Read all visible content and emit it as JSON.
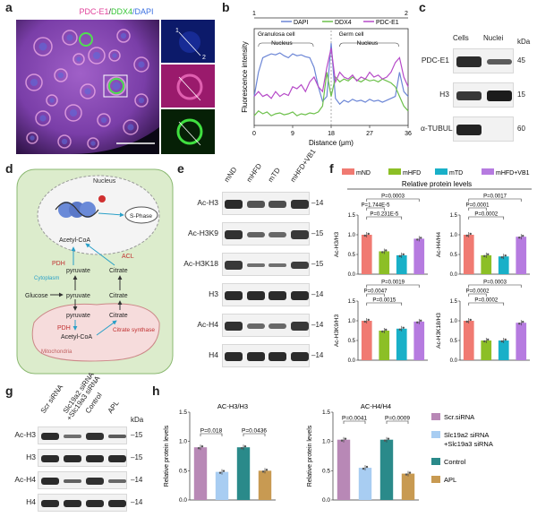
{
  "panel_letters": [
    "a",
    "b",
    "c",
    "d",
    "e",
    "f",
    "g",
    "h"
  ],
  "panel_a": {
    "title_parts": [
      {
        "text": "PDC-E1",
        "color": "#e0409a"
      },
      {
        "text": "/",
        "color": "#333333"
      },
      {
        "text": "DDX4",
        "color": "#35c435"
      },
      {
        "text": "/DAPI",
        "color": "#3a6fe0"
      }
    ],
    "inset_marks": [
      "1",
      "2"
    ]
  },
  "panel_b": {
    "chart_data": {
      "type": "line",
      "xlabel": "Distance (μm)",
      "ylabel": "Fluorescence intensity",
      "xticks": [
        "0",
        "9",
        "18",
        "27",
        "36"
      ],
      "xlim": [
        0,
        36
      ],
      "legend": [
        "DAPI",
        "DDX4",
        "PDC-E1"
      ],
      "colors": {
        "DAPI": "#6c86d6",
        "DDX4": "#6cc04a",
        "PDC-E1": "#b64ac8"
      },
      "top_marks": [
        "1",
        "2"
      ],
      "region_labels": [
        "Granulosa cell",
        "Germ cell"
      ],
      "nucleus_labels": [
        "Nucleus",
        "Nucleus"
      ],
      "x": [
        0,
        1,
        2,
        3,
        4,
        5,
        6,
        7,
        8,
        9,
        10,
        11,
        12,
        13,
        14,
        15,
        16,
        17,
        18,
        19,
        20,
        21,
        22,
        23,
        24,
        25,
        26,
        27,
        28,
        29,
        30,
        31,
        32,
        33,
        34,
        35,
        36
      ],
      "series": [
        {
          "name": "DAPI",
          "values": [
            0.3,
            0.55,
            0.7,
            0.72,
            0.74,
            0.73,
            0.75,
            0.72,
            0.7,
            0.74,
            0.72,
            0.73,
            0.71,
            0.7,
            0.6,
            0.4,
            0.25,
            0.3,
            0.85,
            0.28,
            0.22,
            0.26,
            0.24,
            0.27,
            0.25,
            0.26,
            0.24,
            0.27,
            0.25,
            0.26,
            0.24,
            0.26,
            0.28,
            0.3,
            0.55,
            0.35,
            0.3
          ]
        },
        {
          "name": "DDX4",
          "values": [
            0.1,
            0.15,
            0.12,
            0.14,
            0.1,
            0.12,
            0.13,
            0.11,
            0.12,
            0.14,
            0.1,
            0.12,
            0.11,
            0.13,
            0.12,
            0.14,
            0.2,
            0.55,
            0.3,
            0.5,
            0.45,
            0.48,
            0.46,
            0.5,
            0.47,
            0.45,
            0.48,
            0.46,
            0.47,
            0.45,
            0.48,
            0.46,
            0.44,
            0.4,
            0.3,
            0.2,
            0.15
          ]
        },
        {
          "name": "PDC-E1",
          "values": [
            0.3,
            0.35,
            0.3,
            0.32,
            0.28,
            0.35,
            0.3,
            0.33,
            0.31,
            0.4,
            0.38,
            0.42,
            0.35,
            0.45,
            0.5,
            0.4,
            0.35,
            0.6,
            0.8,
            0.45,
            0.55,
            0.5,
            0.48,
            0.52,
            0.46,
            0.5,
            0.48,
            0.55,
            0.5,
            0.52,
            0.48,
            0.5,
            0.55,
            0.65,
            0.7,
            0.5,
            0.4
          ]
        }
      ]
    }
  },
  "panel_c": {
    "columns": [
      "Cells",
      "Nuclei"
    ],
    "unit": "kDa",
    "rows": [
      {
        "label": "PDC-E1",
        "kda": "45",
        "bands": [
          0.9,
          0.55
        ]
      },
      {
        "label": "H3",
        "kda": "15",
        "bands": [
          0.8,
          1.0
        ]
      },
      {
        "label": "α-TUBULIN",
        "kda": "60",
        "bands": [
          0.95,
          0.0
        ]
      }
    ]
  },
  "panel_d": {
    "nucleus": "Nucleus",
    "cytoplasm": "Cytoplasm",
    "mitochondria": "Mitochondria",
    "s_phase": "S-Phase",
    "acetyl_coa": "Acetyl-CoA",
    "pdh": "PDH",
    "acl": "ACL",
    "pyruvate": "pyruvate",
    "citrate": "Citrate",
    "glucose": "Glucose",
    "citrate_synthase": "Citrate synthase"
  },
  "panel_e": {
    "columns": [
      "mND",
      "mHFD",
      "mTD",
      "mHFD+VB1"
    ],
    "rows": [
      {
        "label": "Ac-H3",
        "kda": "14",
        "bands": [
          0.9,
          0.6,
          0.65,
          0.85
        ]
      },
      {
        "label": "Ac-H3K9",
        "kda": "15",
        "bands": [
          0.85,
          0.5,
          0.45,
          0.8
        ]
      },
      {
        "label": "Ac-H3K18",
        "kda": "15",
        "bands": [
          0.8,
          0.4,
          0.4,
          0.75
        ]
      },
      {
        "label": "H3",
        "kda": "14",
        "bands": [
          0.9,
          0.9,
          0.9,
          0.9
        ]
      },
      {
        "label": "Ac-H4",
        "kda": "14",
        "bands": [
          0.85,
          0.45,
          0.45,
          0.8
        ]
      },
      {
        "label": "H4",
        "kda": "14",
        "bands": [
          0.9,
          0.9,
          0.9,
          0.9
        ]
      }
    ]
  },
  "panel_f": {
    "legend": [
      {
        "name": "mND",
        "color": "#f07a72"
      },
      {
        "name": "mHFD",
        "color": "#8cbf26"
      },
      {
        "name": "mTD",
        "color": "#19b0c8"
      },
      {
        "name": "mHFD+VB1",
        "color": "#b67be0"
      }
    ],
    "heading": "Relative protein levels",
    "chart_data": [
      {
        "type": "bar",
        "ylabel": "Ac-H3/H3",
        "categories": [
          "mND",
          "mHFD",
          "mTD",
          "mHFD+VB1"
        ],
        "values": [
          1.0,
          0.58,
          0.48,
          0.9
        ],
        "ylim": [
          0,
          1.5
        ],
        "yticks": [
          "0.0",
          "0.5",
          "1.0",
          "1.5"
        ],
        "annotations": [
          "P=0.0003",
          "P=1.744E-5",
          "P=0.231E-5"
        ]
      },
      {
        "type": "bar",
        "ylabel": "Ac-H4/H4",
        "categories": [
          "mND",
          "mHFD",
          "mTD",
          "mHFD+VB1"
        ],
        "values": [
          1.0,
          0.48,
          0.45,
          0.95
        ],
        "ylim": [
          0,
          1.5
        ],
        "yticks": [
          "0.0",
          "0.5",
          "1.0",
          "1.5"
        ],
        "annotations": [
          "P=0.0017",
          "P=0.0001",
          "P=0.0002"
        ]
      },
      {
        "type": "bar",
        "ylabel": "Ac-H3K9/H3",
        "categories": [
          "mND",
          "mHFD",
          "mTD",
          "mHFD+VB1"
        ],
        "values": [
          1.0,
          0.75,
          0.8,
          0.98
        ],
        "ylim": [
          0,
          1.5
        ],
        "yticks": [
          "0.0",
          "0.5",
          "1.0",
          "1.5"
        ],
        "annotations": [
          "P=0.0019",
          "P=0.0047",
          "P=0.0015"
        ]
      },
      {
        "type": "bar",
        "ylabel": "Ac-H3K18/H3",
        "categories": [
          "mND",
          "mHFD",
          "mTD",
          "mHFD+VB1"
        ],
        "values": [
          1.0,
          0.5,
          0.5,
          0.95
        ],
        "ylim": [
          0,
          1.5
        ],
        "yticks": [
          "0.0",
          "0.5",
          "1.0",
          "1.5"
        ],
        "annotations": [
          "P=0.0003",
          "P=0.0002",
          "P=0.0002"
        ]
      }
    ]
  },
  "panel_g": {
    "columns": [
      "Scr siRNA",
      "Slc19a2 siRNA + Slc19a3 siRNA",
      "Control",
      "APL"
    ],
    "col_line1": [
      "Scr siRNA",
      "Slc19a2 siRNA",
      "Control",
      "APL"
    ],
    "col_line2": [
      "",
      "+Slc19a3 siRNA",
      "",
      ""
    ],
    "unit": "kDa",
    "rows": [
      {
        "label": "Ac-H3",
        "kda": "15",
        "bands": [
          0.9,
          0.4,
          0.85,
          0.55
        ]
      },
      {
        "label": "H3",
        "kda": "15",
        "bands": [
          0.9,
          0.9,
          0.9,
          0.9
        ]
      },
      {
        "label": "Ac-H4",
        "kda": "14",
        "bands": [
          0.9,
          0.5,
          0.85,
          0.45
        ]
      },
      {
        "label": "H4",
        "kda": "14",
        "bands": [
          0.9,
          0.9,
          0.9,
          0.9
        ]
      }
    ]
  },
  "panel_h": {
    "legend": [
      {
        "name": "Scr.siRNA",
        "color": "#b888b6"
      },
      {
        "name_line1": "Slc19a2 siRNA",
        "name_line2": "+Slc19a3 siRNA",
        "color": "#a8cdf2"
      },
      {
        "name": "Control",
        "color": "#2a8a8a"
      },
      {
        "name": "APL",
        "color": "#c89a52"
      }
    ],
    "chart_data": [
      {
        "type": "bar",
        "title": "AC-H3/H3",
        "ylabel": "Relative protein levels",
        "categories": [
          "Scr.siRNA",
          "Slc19a2 siRNA +Slc19a3 siRNA",
          "Control",
          "APL"
        ],
        "values": [
          0.9,
          0.48,
          0.9,
          0.5
        ],
        "ylim": [
          0,
          1.5
        ],
        "yticks": [
          "0.0",
          "0.5",
          "1.0",
          "1.5"
        ],
        "annotations": [
          "P=0.018",
          "P=0.0436"
        ]
      },
      {
        "type": "bar",
        "title": "AC-H4/H4",
        "ylabel": "Relative protein levels",
        "categories": [
          "Scr.siRNA",
          "Slc19a2 siRNA +Slc19a3 siRNA",
          "Control",
          "APL"
        ],
        "values": [
          1.03,
          0.55,
          1.03,
          0.45
        ],
        "ylim": [
          0,
          1.5
        ],
        "yticks": [
          "0.0",
          "0.5",
          "1.0",
          "1.5"
        ],
        "annotations": [
          "P=0.0041",
          "P=0.0009"
        ]
      }
    ]
  }
}
